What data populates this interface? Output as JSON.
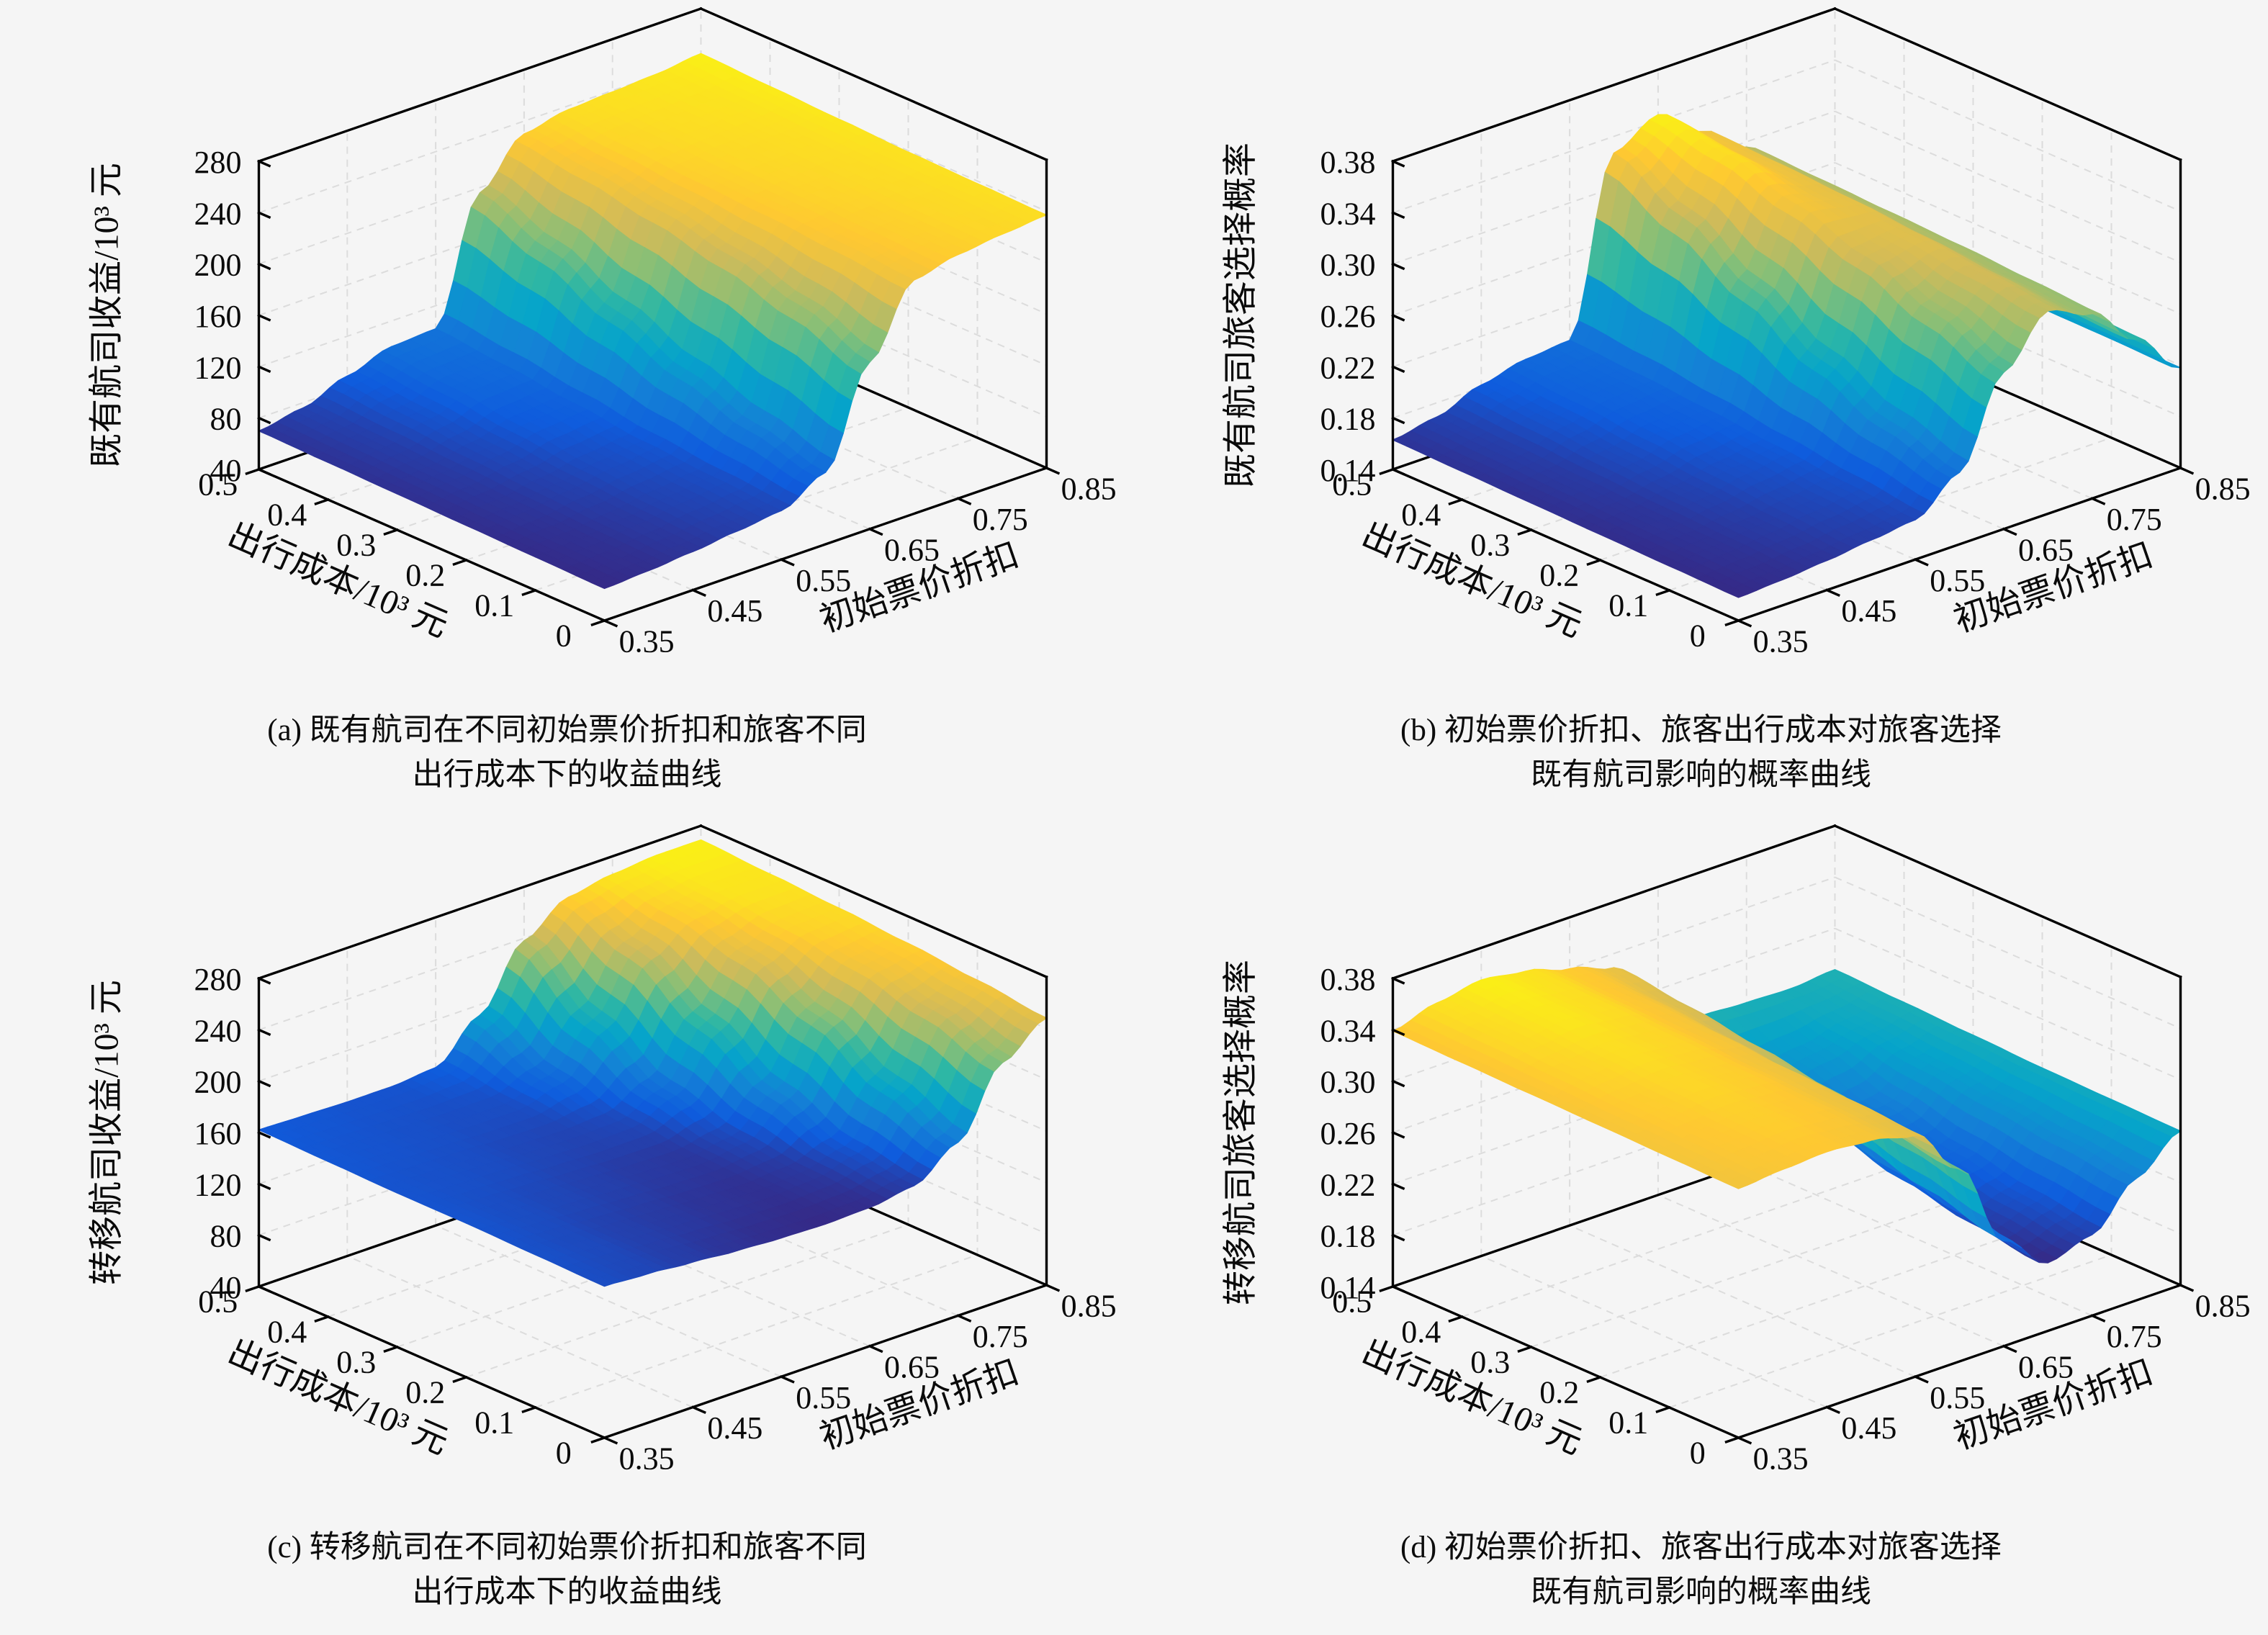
{
  "page": {
    "background": "#f5f5f5"
  },
  "colormap": [
    "#352a87",
    "#0f5cdd",
    "#1481d6",
    "#06a4ca",
    "#2eb7a4",
    "#87bf77",
    "#d1bb59",
    "#fec832",
    "#f9fb0e"
  ],
  "chart_data": [
    {
      "type": "surface",
      "panel": "a",
      "zlabel": "既有航司收益/10³ 元",
      "xlabel": "初始票价折扣",
      "ylabel": "出行成本/10³ 元",
      "caption_line1": "(a) 既有航司在不同初始票价折扣和旅客不同",
      "caption_line2": "出行成本下的收益曲线",
      "xlim": [
        0.35,
        0.85
      ],
      "ylim": [
        0,
        0.5
      ],
      "zlim": [
        40,
        280
      ],
      "xticks": [
        0.35,
        0.45,
        0.55,
        0.65,
        0.75,
        0.85
      ],
      "xticklabels": [
        "0.35",
        "0.45",
        "0.55",
        "0.65",
        "0.75",
        "0.85"
      ],
      "yticks": [
        0,
        0.1,
        0.2,
        0.3,
        0.4,
        0.5
      ],
      "yticklabels": [
        "0",
        "0.1",
        "0.2",
        "0.3",
        "0.4",
        "0.5"
      ],
      "zticks": [
        40,
        80,
        120,
        160,
        200,
        240,
        280
      ],
      "zticklabels": [
        "40",
        "80",
        "120",
        "160",
        "200",
        "240",
        "280"
      ],
      "x": [
        0.35,
        0.4,
        0.45,
        0.5,
        0.55,
        0.6,
        0.65,
        0.7,
        0.75,
        0.8,
        0.85
      ],
      "y": [
        0,
        0.1,
        0.2,
        0.3,
        0.4,
        0.5
      ],
      "z": [
        [
          65,
          67,
          70,
          74,
          78,
          96,
          170,
          222,
          230,
          234,
          237
        ],
        [
          66,
          68,
          72,
          77,
          81,
          110,
          190,
          226,
          231,
          235,
          238
        ],
        [
          67,
          70,
          75,
          81,
          85,
          128,
          205,
          229,
          233,
          236,
          239
        ],
        [
          68,
          72,
          79,
          88,
          91,
          150,
          216,
          231,
          235,
          237,
          241
        ],
        [
          69,
          74,
          84,
          95,
          97,
          175,
          224,
          234,
          237,
          239,
          243
        ],
        [
          70,
          76,
          89,
          100,
          102,
          196,
          230,
          237,
          239,
          241,
          245
        ]
      ]
    },
    {
      "type": "surface",
      "panel": "b",
      "zlabel": "既有航司旅客选择概率",
      "xlabel": "初始票价折扣",
      "ylabel": "出行成本/10³ 元",
      "caption_line1": "(b) 初始票价折扣、旅客出行成本对旅客选择",
      "caption_line2": "既有航司影响的概率曲线",
      "xlim": [
        0.35,
        0.85
      ],
      "ylim": [
        0,
        0.5
      ],
      "zlim": [
        0.14,
        0.38
      ],
      "xticks": [
        0.35,
        0.45,
        0.55,
        0.65,
        0.75,
        0.85
      ],
      "xticklabels": [
        "0.35",
        "0.45",
        "0.55",
        "0.65",
        "0.75",
        "0.85"
      ],
      "yticks": [
        0,
        0.1,
        0.2,
        0.3,
        0.4,
        0.5
      ],
      "yticklabels": [
        "0",
        "0.1",
        "0.2",
        "0.3",
        "0.4",
        "0.5"
      ],
      "zticks": [
        0.14,
        0.18,
        0.22,
        0.26,
        0.3,
        0.34,
        0.38
      ],
      "zticklabels": [
        "0.14",
        "0.18",
        "0.22",
        "0.26",
        "0.30",
        "0.34",
        "0.38"
      ],
      "x": [
        0.35,
        0.4,
        0.45,
        0.5,
        0.55,
        0.6,
        0.65,
        0.7,
        0.75,
        0.8,
        0.85
      ],
      "y": [
        0,
        0.1,
        0.2,
        0.3,
        0.4,
        0.5
      ],
      "z": [
        [
          0.158,
          0.16,
          0.163,
          0.167,
          0.171,
          0.196,
          0.262,
          0.298,
          0.284,
          0.252,
          0.218
        ],
        [
          0.159,
          0.162,
          0.166,
          0.171,
          0.176,
          0.212,
          0.284,
          0.304,
          0.287,
          0.254,
          0.219
        ],
        [
          0.16,
          0.163,
          0.169,
          0.176,
          0.181,
          0.236,
          0.305,
          0.31,
          0.29,
          0.256,
          0.219
        ],
        [
          0.161,
          0.165,
          0.173,
          0.182,
          0.186,
          0.268,
          0.322,
          0.315,
          0.292,
          0.258,
          0.22
        ],
        [
          0.162,
          0.167,
          0.178,
          0.187,
          0.19,
          0.3,
          0.337,
          0.318,
          0.294,
          0.259,
          0.22
        ],
        [
          0.163,
          0.169,
          0.182,
          0.19,
          0.193,
          0.327,
          0.345,
          0.32,
          0.296,
          0.26,
          0.221
        ]
      ]
    },
    {
      "type": "surface",
      "panel": "c",
      "zlabel": "转移航司收益/10³ 元",
      "xlabel": "初始票价折扣",
      "ylabel": "出行成本/10³ 元",
      "caption_line1": "(c) 转移航司在不同初始票价折扣和旅客不同",
      "caption_line2": "出行成本下的收益曲线",
      "xlim": [
        0.35,
        0.85
      ],
      "ylim": [
        0,
        0.5
      ],
      "zlim": [
        40,
        280
      ],
      "xticks": [
        0.35,
        0.45,
        0.55,
        0.65,
        0.75,
        0.85
      ],
      "xticklabels": [
        "0.35",
        "0.45",
        "0.55",
        "0.65",
        "0.75",
        "0.85"
      ],
      "yticks": [
        0,
        0.1,
        0.2,
        0.3,
        0.4,
        0.5
      ],
      "yticklabels": [
        "0",
        "0.1",
        "0.2",
        "0.3",
        "0.4",
        "0.5"
      ],
      "zticks": [
        40,
        80,
        120,
        160,
        200,
        240,
        280
      ],
      "zticklabels": [
        "40",
        "80",
        "120",
        "160",
        "200",
        "240",
        "280"
      ],
      "x": [
        0.35,
        0.4,
        0.45,
        0.5,
        0.55,
        0.6,
        0.65,
        0.7,
        0.75,
        0.8,
        0.85
      ],
      "y": [
        0,
        0.1,
        0.2,
        0.3,
        0.4,
        0.5
      ],
      "z": [
        [
          158,
          156,
          153,
          150,
          148,
          147,
          148,
          153,
          175,
          225,
          248
        ],
        [
          159,
          157,
          154,
          152,
          150,
          149,
          151,
          160,
          196,
          242,
          254
        ],
        [
          160,
          158,
          156,
          154,
          152,
          151,
          156,
          180,
          225,
          254,
          259
        ],
        [
          160,
          159,
          158,
          156,
          155,
          156,
          170,
          210,
          248,
          261,
          263
        ],
        [
          161,
          160,
          159,
          158,
          158,
          168,
          200,
          242,
          260,
          266,
          266
        ],
        [
          162,
          161,
          160,
          160,
          163,
          192,
          238,
          260,
          266,
          269,
          269
        ]
      ]
    },
    {
      "type": "surface",
      "panel": "d",
      "zlabel": "转移航司旅客选择概率",
      "xlabel": "初始票价折扣",
      "ylabel": "出行成本/10³ 元",
      "caption_line1": "(d) 初始票价折扣、旅客出行成本对旅客选择",
      "caption_line2": "既有航司影响的概率曲线",
      "xlim": [
        0.35,
        0.85
      ],
      "ylim": [
        0,
        0.5
      ],
      "zlim": [
        0.14,
        0.38
      ],
      "xticks": [
        0.35,
        0.45,
        0.55,
        0.65,
        0.75,
        0.85
      ],
      "xticklabels": [
        "0.35",
        "0.45",
        "0.55",
        "0.65",
        "0.75",
        "0.85"
      ],
      "yticks": [
        0,
        0.1,
        0.2,
        0.3,
        0.4,
        0.5
      ],
      "yticklabels": [
        "0",
        "0.1",
        "0.2",
        "0.3",
        "0.4",
        "0.5"
      ],
      "zticks": [
        0.14,
        0.18,
        0.22,
        0.26,
        0.3,
        0.34,
        0.38
      ],
      "zticklabels": [
        "0.14",
        "0.18",
        "0.22",
        "0.26",
        "0.30",
        "0.34",
        "0.38"
      ],
      "x": [
        0.35,
        0.4,
        0.45,
        0.5,
        0.55,
        0.6,
        0.65,
        0.7,
        0.75,
        0.8,
        0.85
      ],
      "y": [
        0,
        0.1,
        0.2,
        0.3,
        0.4,
        0.5
      ],
      "z": [
        [
          0.334,
          0.337,
          0.339,
          0.336,
          0.328,
          0.29,
          0.222,
          0.193,
          0.203,
          0.235,
          0.26
        ],
        [
          0.335,
          0.339,
          0.342,
          0.339,
          0.331,
          0.299,
          0.236,
          0.2,
          0.21,
          0.241,
          0.261
        ],
        [
          0.336,
          0.341,
          0.345,
          0.342,
          0.333,
          0.308,
          0.25,
          0.21,
          0.22,
          0.247,
          0.262
        ],
        [
          0.337,
          0.344,
          0.348,
          0.345,
          0.336,
          0.316,
          0.263,
          0.224,
          0.233,
          0.253,
          0.264
        ],
        [
          0.338,
          0.347,
          0.352,
          0.348,
          0.338,
          0.323,
          0.276,
          0.245,
          0.25,
          0.259,
          0.266
        ],
        [
          0.339,
          0.349,
          0.355,
          0.35,
          0.34,
          0.329,
          0.288,
          0.268,
          0.266,
          0.265,
          0.268
        ]
      ]
    }
  ]
}
